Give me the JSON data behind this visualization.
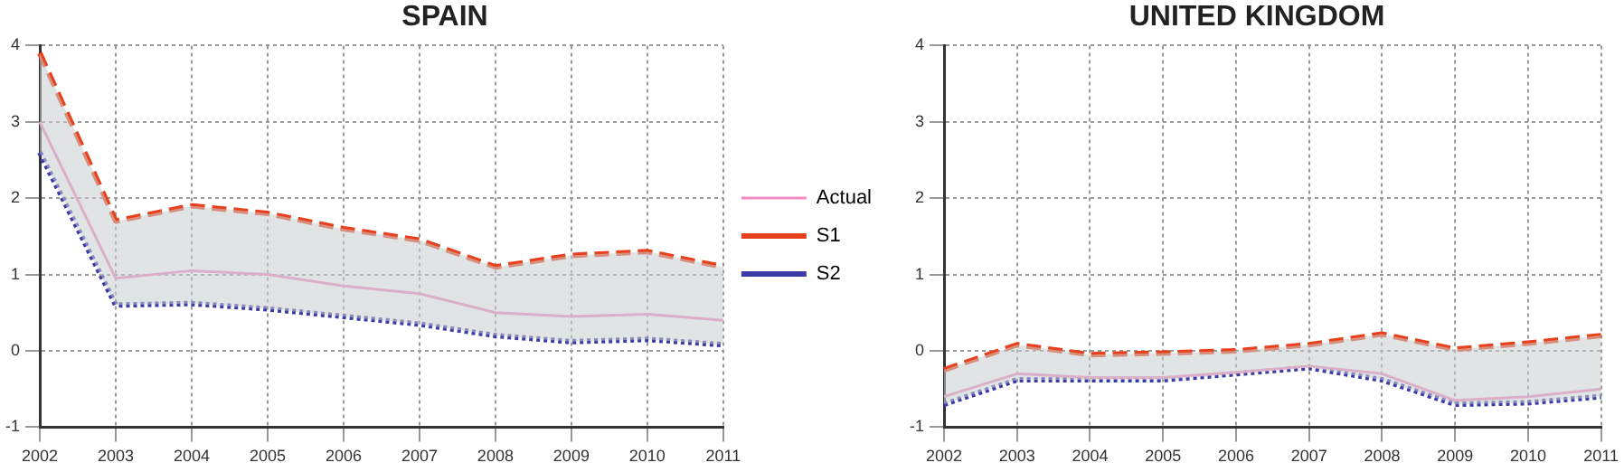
{
  "chart_data": [
    {
      "type": "line",
      "title": "SPAIN",
      "categories": [
        "2002",
        "2003",
        "2004",
        "2005",
        "2006",
        "2007",
        "2008",
        "2009",
        "2010",
        "2011"
      ],
      "series": [
        {
          "name": "Actual",
          "color": "#f08cc0",
          "line_style": "solid",
          "values": [
            3.0,
            0.95,
            1.05,
            1.0,
            0.85,
            0.75,
            0.5,
            0.45,
            0.48,
            0.4
          ],
          "lower": [
            2.6,
            0.6,
            0.62,
            0.55,
            0.45,
            0.35,
            0.2,
            0.12,
            0.15,
            0.08
          ],
          "upper": [
            3.9,
            1.7,
            1.9,
            1.8,
            1.6,
            1.45,
            1.1,
            1.25,
            1.3,
            1.1
          ]
        },
        {
          "name": "S1",
          "color": "#e8401c",
          "line_style": "dashed",
          "values": [
            3.9,
            1.7,
            1.9,
            1.8,
            1.6,
            1.45,
            1.1,
            1.25,
            1.3,
            1.1
          ]
        },
        {
          "name": "S2",
          "color": "#3a3aa8",
          "line_style": "dotted",
          "values": [
            2.6,
            0.6,
            0.62,
            0.55,
            0.45,
            0.35,
            0.2,
            0.12,
            0.15,
            0.08
          ]
        }
      ],
      "ylim": [
        -1,
        4
      ],
      "yticks": [
        -1,
        0,
        1,
        2,
        3,
        4
      ],
      "grid": true,
      "legend": "right",
      "marker": "none"
    },
    {
      "type": "line",
      "title": "UNITED KINGDOM",
      "categories": [
        "2002",
        "2003",
        "2004",
        "2005",
        "2006",
        "2007",
        "2008",
        "2009",
        "2010",
        "2011"
      ],
      "series": [
        {
          "color": "#f08cc0",
          "line_style": "solid",
          "values": [
            -0.6,
            -0.3,
            -0.35,
            -0.35,
            -0.28,
            -0.2,
            -0.3,
            -0.65,
            -0.6,
            -0.5
          ],
          "lower": [
            -0.7,
            -0.38,
            -0.38,
            -0.38,
            -0.3,
            -0.22,
            -0.38,
            -0.7,
            -0.68,
            -0.6
          ],
          "upper": [
            -0.25,
            0.08,
            -0.05,
            -0.03,
            0.0,
            0.08,
            0.22,
            0.02,
            0.1,
            0.2
          ]
        },
        {
          "color": "#e8401c",
          "line_style": "dashed",
          "values": [
            -0.25,
            0.08,
            -0.05,
            -0.03,
            0.0,
            0.08,
            0.22,
            0.02,
            0.1,
            0.2
          ]
        },
        {
          "color": "#3a3aa8",
          "line_style": "dotted",
          "values": [
            -0.7,
            -0.38,
            -0.38,
            -0.38,
            -0.3,
            -0.22,
            -0.38,
            -0.7,
            -0.68,
            -0.6
          ]
        }
      ],
      "ylim": [
        -1,
        4
      ],
      "yticks": [
        -1,
        0,
        1,
        2,
        3,
        4
      ],
      "grid": true,
      "legend": false,
      "marker": "none"
    }
  ]
}
